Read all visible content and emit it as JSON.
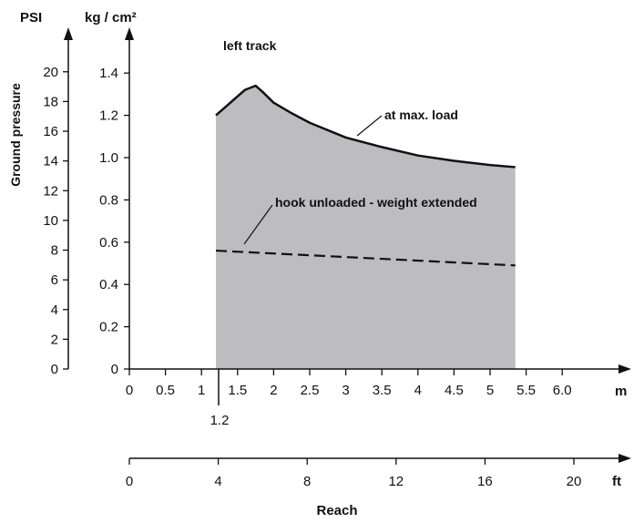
{
  "chart_data": {
    "type": "area",
    "title": "left track",
    "ylabel": "Ground pressure",
    "xlabel": "Reach",
    "units": {
      "psi": "PSI",
      "kg": "kg / cm²",
      "m": "m",
      "ft": "ft"
    },
    "y_kg": {
      "range": [
        0,
        1.55
      ],
      "ticks": [
        "0",
        "0.2",
        "0.4",
        "0.6",
        "0.8",
        "1.0",
        "1.2",
        "1.4"
      ]
    },
    "y_psi": {
      "ticks": [
        "0",
        "2",
        "4",
        "6",
        "8",
        "10",
        "12",
        "14",
        "16",
        "18",
        "20"
      ]
    },
    "x_m": {
      "range": [
        -0.05,
        6.85
      ],
      "ticks": [
        "0",
        "0.5",
        "1",
        "1.5",
        "2",
        "2.5",
        "3",
        "3.5",
        "4",
        "4.5",
        "5",
        "5.5",
        "6.0"
      ],
      "marker": "1.2"
    },
    "x_ft": {
      "ticks": [
        "0",
        "4",
        "8",
        "12",
        "16",
        "20"
      ]
    },
    "series": [
      {
        "name": "at max. load",
        "style": "solid",
        "x": [
          1.2,
          1.4,
          1.6,
          1.75,
          1.85,
          2.0,
          2.25,
          2.5,
          3.0,
          3.5,
          4.0,
          4.5,
          5.0,
          5.35
        ],
        "y": [
          1.2,
          1.26,
          1.32,
          1.34,
          1.31,
          1.26,
          1.21,
          1.165,
          1.095,
          1.05,
          1.01,
          0.985,
          0.965,
          0.955
        ]
      },
      {
        "name": "hook unloaded - weight extended",
        "style": "dashed",
        "x": [
          1.2,
          5.35
        ],
        "y": [
          0.56,
          0.49
        ]
      }
    ],
    "shaded_region_x": [
      1.2,
      5.35
    ],
    "fill_color": "#bdbcc0"
  }
}
